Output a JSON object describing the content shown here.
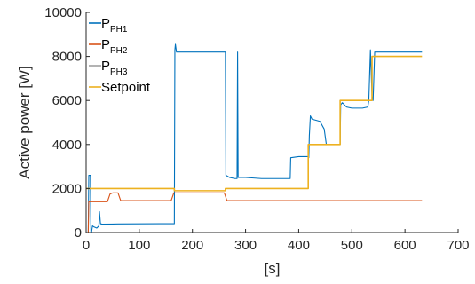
{
  "chart_data": {
    "type": "line",
    "xlabel": "[s]",
    "ylabel": "Active power [W]",
    "xlim": [
      0,
      700
    ],
    "ylim": [
      0,
      10000
    ],
    "xticks": [
      0,
      100,
      200,
      300,
      400,
      500,
      600,
      700
    ],
    "yticks": [
      0,
      2000,
      4000,
      6000,
      8000,
      10000
    ],
    "grid": false,
    "legend_position": "top-left",
    "series": [
      {
        "name": "P_PH1",
        "legend_main": "P",
        "legend_sub": "PH1",
        "color": "#0072BD",
        "points": [
          [
            0,
            0
          ],
          [
            4,
            0
          ],
          [
            5,
            2600
          ],
          [
            8,
            2600
          ],
          [
            9,
            0
          ],
          [
            10,
            0
          ],
          [
            12,
            300
          ],
          [
            15,
            250
          ],
          [
            20,
            200
          ],
          [
            24,
            300
          ],
          [
            25,
            950
          ],
          [
            26,
            700
          ],
          [
            27,
            400
          ],
          [
            30,
            380
          ],
          [
            60,
            390
          ],
          [
            100,
            395
          ],
          [
            140,
            400
          ],
          [
            166,
            400
          ],
          [
            167,
            8300
          ],
          [
            168,
            8550
          ],
          [
            170,
            8200
          ],
          [
            200,
            8200
          ],
          [
            230,
            8200
          ],
          [
            262,
            8200
          ],
          [
            263,
            2600
          ],
          [
            270,
            2500
          ],
          [
            280,
            2450
          ],
          [
            284,
            2450
          ],
          [
            285,
            8200
          ],
          [
            286,
            2500
          ],
          [
            290,
            2500
          ],
          [
            300,
            2500
          ],
          [
            330,
            2450
          ],
          [
            360,
            2450
          ],
          [
            384,
            2450
          ],
          [
            385,
            3400
          ],
          [
            400,
            3450
          ],
          [
            418,
            3450
          ],
          [
            419,
            3400
          ],
          [
            420,
            4400
          ],
          [
            422,
            5300
          ],
          [
            425,
            5150
          ],
          [
            440,
            5050
          ],
          [
            448,
            4700
          ],
          [
            452,
            4000
          ],
          [
            478,
            4000
          ],
          [
            479,
            5800
          ],
          [
            482,
            5900
          ],
          [
            490,
            5700
          ],
          [
            500,
            5650
          ],
          [
            520,
            5650
          ],
          [
            530,
            5700
          ],
          [
            532,
            6000
          ],
          [
            535,
            8300
          ],
          [
            538,
            6200
          ],
          [
            540,
            6000
          ],
          [
            543,
            8200
          ],
          [
            560,
            8200
          ],
          [
            600,
            8200
          ],
          [
            632,
            8200
          ]
        ]
      },
      {
        "name": "P_PH2",
        "legend_main": "P",
        "legend_sub": "PH2",
        "color": "#D95319",
        "points": [
          [
            0,
            0
          ],
          [
            4,
            0
          ],
          [
            5,
            1400
          ],
          [
            40,
            1400
          ],
          [
            45,
            1750
          ],
          [
            50,
            1800
          ],
          [
            60,
            1800
          ],
          [
            65,
            1450
          ],
          [
            160,
            1450
          ],
          [
            165,
            1800
          ],
          [
            260,
            1800
          ],
          [
            265,
            1450
          ],
          [
            300,
            1450
          ],
          [
            400,
            1450
          ],
          [
            500,
            1450
          ],
          [
            632,
            1450
          ]
        ]
      },
      {
        "name": "P_PH3",
        "legend_main": "P",
        "legend_sub": "PH3",
        "color": "#A0A0A0",
        "points": [
          [
            0,
            0
          ],
          [
            632,
            0
          ]
        ]
      },
      {
        "name": "Setpoint",
        "legend_main": "Setpoint",
        "legend_sub": "",
        "color": "#EDB120",
        "points": [
          [
            0,
            2000
          ],
          [
            166,
            2000
          ],
          [
            166,
            1900
          ],
          [
            262,
            1900
          ],
          [
            262,
            2000
          ],
          [
            418,
            2000
          ],
          [
            418,
            4000
          ],
          [
            478,
            4000
          ],
          [
            478,
            6000
          ],
          [
            538,
            6000
          ],
          [
            538,
            8000
          ],
          [
            632,
            8000
          ]
        ]
      }
    ]
  }
}
